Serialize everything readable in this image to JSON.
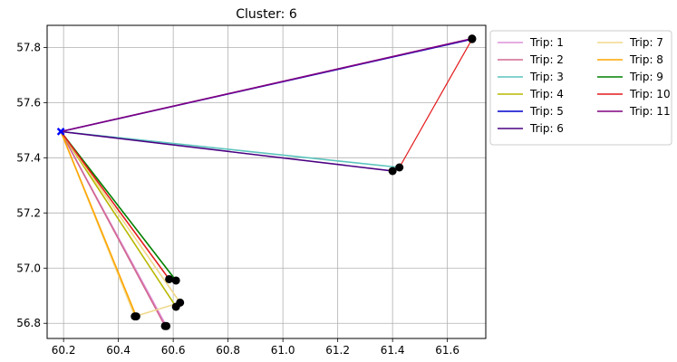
{
  "chart_data": {
    "type": "line",
    "title": "Cluster: 6",
    "xlabel": "",
    "ylabel": "",
    "xlim": [
      60.14,
      61.74
    ],
    "ylim": [
      56.745,
      57.88
    ],
    "xticks": [
      60.2,
      60.4,
      60.6,
      60.8,
      61.0,
      61.2,
      61.4,
      61.6
    ],
    "yticks": [
      56.8,
      57.0,
      57.2,
      57.4,
      57.6,
      57.8
    ],
    "grid": true,
    "legend_position": "outside-right",
    "legend_columns": 2,
    "depot": {
      "x": 60.19,
      "y": 57.495,
      "color": "#0000ff"
    },
    "stop_color": "#000000",
    "series": [
      {
        "name": "Trip: 1",
        "color": "#dd90d8",
        "points": [
          [
            60.19,
            57.495
          ],
          [
            60.575,
            56.79
          ],
          [
            60.19,
            57.495
          ]
        ]
      },
      {
        "name": "Trip: 2",
        "color": "#d2688f",
        "points": [
          [
            60.19,
            57.495
          ],
          [
            60.57,
            56.79
          ],
          [
            60.19,
            57.495
          ]
        ]
      },
      {
        "name": "Trip: 3",
        "color": "#5cc4bd",
        "points": [
          [
            60.19,
            57.495
          ],
          [
            61.425,
            57.365
          ],
          [
            60.19,
            57.495
          ]
        ]
      },
      {
        "name": "Trip: 4",
        "color": "#b8b800",
        "points": [
          [
            60.19,
            57.495
          ],
          [
            60.61,
            56.86
          ],
          [
            60.19,
            57.495
          ]
        ]
      },
      {
        "name": "Trip: 5",
        "color": "#0000cc",
        "points": [
          [
            60.19,
            57.495
          ],
          [
            61.69,
            57.83
          ],
          [
            60.19,
            57.495
          ]
        ]
      },
      {
        "name": "Trip: 6",
        "color": "#4b0082",
        "points": [
          [
            60.19,
            57.495
          ],
          [
            61.4,
            57.352
          ],
          [
            60.19,
            57.495
          ]
        ]
      },
      {
        "name": "Trip: 7",
        "color": "#f0d98c",
        "points": [
          [
            60.19,
            57.495
          ],
          [
            60.625,
            56.875
          ],
          [
            60.46,
            56.825
          ],
          [
            60.19,
            57.495
          ]
        ]
      },
      {
        "name": "Trip: 8",
        "color": "#ffa500",
        "points": [
          [
            60.19,
            57.495
          ],
          [
            60.465,
            56.825
          ],
          [
            60.19,
            57.495
          ]
        ]
      },
      {
        "name": "Trip: 9",
        "color": "#008000",
        "points": [
          [
            60.19,
            57.495
          ],
          [
            60.61,
            56.955
          ],
          [
            60.19,
            57.495
          ]
        ]
      },
      {
        "name": "Trip: 10",
        "color": "#e31a1c",
        "points": [
          [
            60.19,
            57.495
          ],
          [
            60.585,
            56.96
          ],
          [
            60.19,
            57.495
          ]
        ]
      },
      {
        "name": "Trip: 11",
        "color": "#800080",
        "points": [
          [
            60.19,
            57.495
          ],
          [
            61.69,
            57.832
          ],
          [
            60.19,
            57.495
          ]
        ]
      }
    ],
    "extra_segments": [
      {
        "from_series": "Trip: 10",
        "color": "#e31a1c",
        "points": [
          [
            61.425,
            57.365
          ],
          [
            61.69,
            57.83
          ]
        ]
      }
    ]
  }
}
